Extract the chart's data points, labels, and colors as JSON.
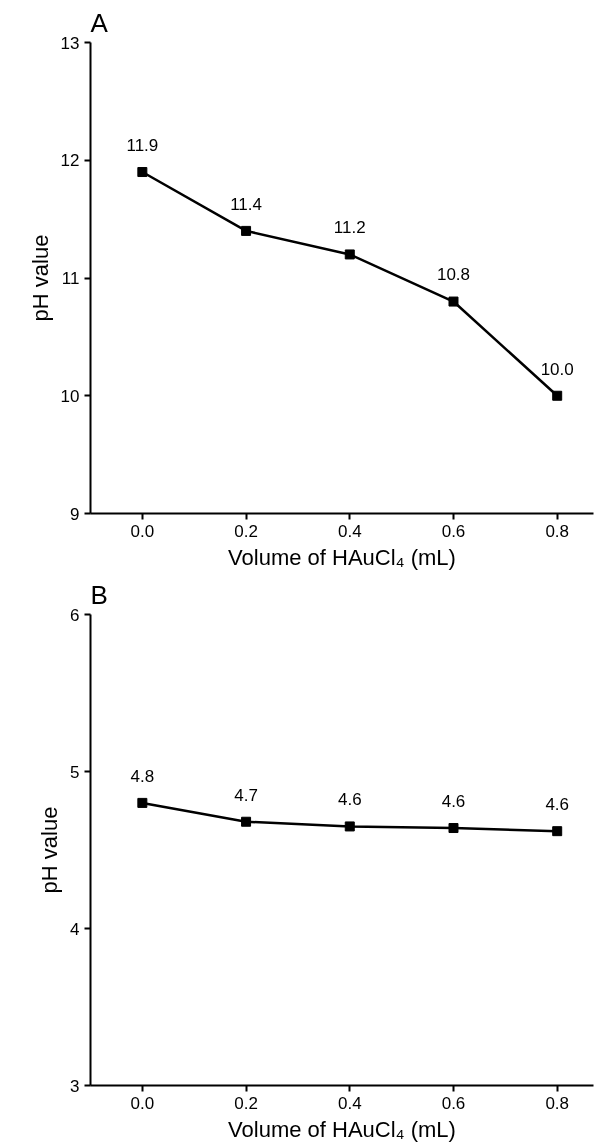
{
  "chart_data": [
    {
      "type": "line",
      "title": "A",
      "xlabel": "Volume of HAuCl₄ (mL)",
      "ylabel": "pH value",
      "x": [
        0.0,
        0.2,
        0.4,
        0.6,
        0.8
      ],
      "series": [
        {
          "color": "#000000",
          "values": [
            11.9,
            11.4,
            11.2,
            10.8,
            10.0
          ]
        }
      ],
      "xlim": [
        -0.1,
        0.87
      ],
      "xticks": [
        {
          "value": 0,
          "label": "0.0"
        },
        0.2,
        0.4,
        0.6,
        0.8
      ],
      "ylim": [
        9,
        13
      ],
      "yticks": [
        9,
        10,
        11,
        12,
        13
      ],
      "value_labels": [
        "11.9",
        "11.4",
        "11.2",
        "10.8",
        "10.0"
      ],
      "marker": "square",
      "line_style": "solid",
      "grid": false
    },
    {
      "type": "line",
      "title": "B",
      "xlabel": "Volume of HAuCl₄ (mL)",
      "ylabel": "pH value",
      "x": [
        0.0,
        0.2,
        0.4,
        0.6,
        0.8
      ],
      "series": [
        {
          "color": "#000000",
          "values": [
            4.8,
            4.68,
            4.65,
            4.64,
            4.62
          ]
        }
      ],
      "xlim": [
        -0.1,
        0.87
      ],
      "xticks": [
        {
          "value": 0,
          "label": "0.0"
        },
        0.2,
        0.4,
        0.6,
        0.8
      ],
      "ylim": [
        3,
        6
      ],
      "yticks": [
        3,
        4,
        5,
        6
      ],
      "value_labels": [
        "4.8",
        "4.7",
        "4.6",
        "4.6",
        "4.6"
      ],
      "marker": "square",
      "line_style": "solid",
      "grid": false
    }
  ]
}
